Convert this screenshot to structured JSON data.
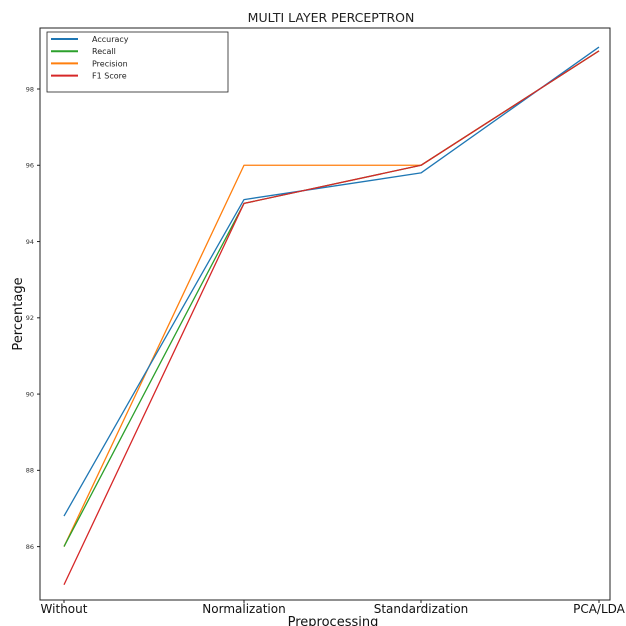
{
  "chart_data": {
    "type": "line",
    "title": "MULTI LAYER PERCEPTRON",
    "xlabel": "Preprocessing",
    "ylabel": "Percentage",
    "categories": [
      "Without",
      "Normalization",
      "Standardization",
      "PCA/LDA"
    ],
    "yticks": [
      86,
      88,
      90,
      92,
      94,
      96,
      98
    ],
    "ylim": [
      84.6,
      99.6
    ],
    "grid": false,
    "legend_position": "top-left",
    "series": [
      {
        "name": "Accuracy",
        "color": "#1f77b4",
        "values": [
          86.8,
          95.1,
          95.8,
          99.1
        ]
      },
      {
        "name": "Recall",
        "color": "#2ca02c",
        "values": [
          86.0,
          95.0,
          96.0,
          99.0
        ]
      },
      {
        "name": "Precision",
        "color": "#ff7f0e",
        "values": [
          86.0,
          96.0,
          96.0,
          99.0
        ]
      },
      {
        "name": "F1 Score",
        "color": "#d62728",
        "values": [
          85.0,
          95.0,
          96.0,
          99.0
        ]
      }
    ]
  }
}
